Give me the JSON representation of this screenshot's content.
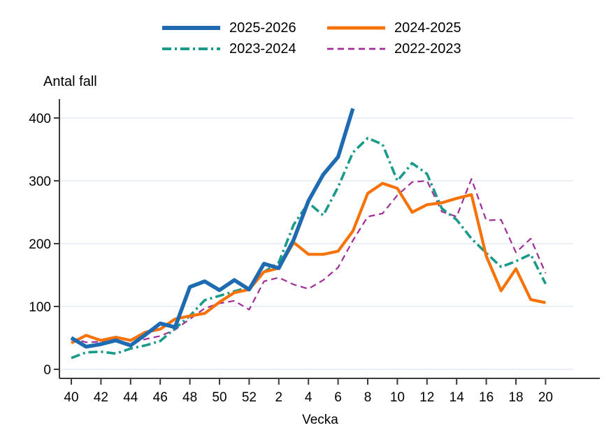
{
  "chart_data": {
    "type": "line",
    "title": "Antal fall",
    "xlabel": "Vecka",
    "ylim": [
      0,
      400
    ],
    "yticks": [
      0,
      100,
      200,
      300,
      400
    ],
    "grid": "horizontal",
    "legend_position": "top",
    "categories": [
      40,
      41,
      42,
      43,
      44,
      45,
      46,
      47,
      48,
      49,
      50,
      51,
      52,
      1,
      2,
      3,
      4,
      5,
      6,
      7,
      8,
      9,
      10,
      11,
      12,
      13,
      14,
      15,
      16,
      17,
      18,
      19,
      20
    ],
    "x_ticks": [
      40,
      42,
      44,
      46,
      48,
      50,
      52,
      2,
      4,
      6,
      8,
      10,
      12,
      14,
      16,
      18,
      20
    ],
    "series": [
      {
        "name": "2025-2026",
        "color": "#1e6bb1",
        "style": "solid",
        "width": 5.5,
        "values": [
          50,
          36,
          40,
          46,
          38,
          55,
          73,
          67,
          131,
          140,
          126,
          142,
          127,
          168,
          161,
          206,
          268,
          310,
          338,
          415
        ]
      },
      {
        "name": "2024-2025",
        "color": "#f77208",
        "style": "solid",
        "width": 4.2,
        "values": [
          42,
          54,
          46,
          51,
          46,
          59,
          64,
          80,
          85,
          89,
          107,
          122,
          127,
          155,
          161,
          202,
          183,
          183,
          188,
          220,
          280,
          296,
          288,
          250,
          262,
          265,
          272,
          278,
          180,
          125,
          160,
          111,
          106
        ]
      },
      {
        "name": "2023-2024",
        "color": "#1a9a88",
        "style": "dash-dot",
        "width": 3.6,
        "values": [
          18,
          27,
          28,
          25,
          33,
          38,
          45,
          65,
          85,
          110,
          117,
          124,
          131,
          155,
          170,
          230,
          265,
          245,
          290,
          345,
          368,
          358,
          300,
          328,
          311,
          256,
          238,
          208,
          185,
          163,
          172,
          183,
          136
        ]
      },
      {
        "name": "2022-2023",
        "color": "#a12d96",
        "style": "dashed",
        "width": 2.2,
        "values": [
          50,
          43,
          44,
          44,
          41,
          48,
          53,
          63,
          80,
          97,
          105,
          109,
          95,
          140,
          146,
          135,
          128,
          142,
          162,
          205,
          243,
          248,
          277,
          298,
          300,
          251,
          243,
          303,
          237,
          238,
          186,
          208,
          153
        ]
      }
    ],
    "axis_color": "#3a3a3a",
    "grid_color": "#e9eff5"
  }
}
